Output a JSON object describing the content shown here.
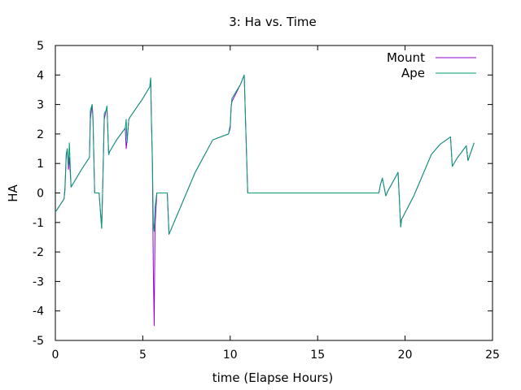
{
  "chart_data": {
    "type": "line",
    "title": "3: Ha vs. Time",
    "xlabel": "time (Elapse Hours)",
    "ylabel": "HA",
    "xlim": [
      0,
      25
    ],
    "ylim": [
      -5,
      5
    ],
    "xticks": [
      0,
      5,
      10,
      15,
      20,
      25
    ],
    "yticks": [
      -5,
      -4,
      -3,
      -2,
      -1,
      0,
      1,
      2,
      3,
      4,
      5
    ],
    "grid": false,
    "legend_position": "top-right",
    "series": [
      {
        "name": "Mount",
        "color": "#9400d3",
        "x": [
          0,
          0.5,
          0.55,
          0.62,
          0.68,
          0.75,
          0.8,
          0.9,
          1.5,
          1.95,
          2.0,
          2.1,
          2.15,
          2.25,
          2.5,
          2.6,
          2.65,
          2.7,
          2.8,
          2.9,
          2.95,
          3.05,
          3.1,
          3.5,
          4.0,
          4.05,
          4.1,
          4.2,
          4.3,
          5.0,
          5.4,
          5.45,
          5.5,
          5.55,
          5.6,
          5.65,
          5.7,
          5.8,
          6.1,
          6.4,
          6.5,
          8.0,
          9.0,
          9.9,
          10.0,
          10.05,
          10.1,
          10.6,
          10.8,
          10.9,
          11.0,
          18.5,
          18.6,
          18.7,
          18.9,
          19.0,
          19.6,
          19.75,
          19.8,
          20.5,
          21.0,
          21.5,
          22.0,
          22.6,
          22.7,
          23.0,
          23.5,
          23.6,
          23.95
        ],
        "y": [
          -0.65,
          -0.2,
          0.1,
          1.2,
          1.5,
          0.8,
          1.2,
          0.2,
          0.8,
          1.2,
          2.5,
          3.0,
          2.5,
          0.0,
          0.0,
          -0.8,
          -1.2,
          0.0,
          2.5,
          2.8,
          2.9,
          1.3,
          1.4,
          1.8,
          2.2,
          1.5,
          1.8,
          2.5,
          2.6,
          3.2,
          3.6,
          3.9,
          2.4,
          1.0,
          -2.5,
          -4.5,
          -1.2,
          0.0,
          0.0,
          0.0,
          -1.4,
          0.7,
          1.8,
          2.0,
          2.2,
          2.9,
          3.1,
          3.7,
          4.0,
          2.0,
          0.0,
          0.0,
          0.3,
          0.5,
          -0.1,
          0.05,
          0.7,
          -1.15,
          -0.9,
          -0.1,
          0.6,
          1.3,
          1.65,
          1.9,
          0.9,
          1.2,
          1.6,
          1.1,
          1.7
        ]
      },
      {
        "name": "Ape",
        "color": "#009e73",
        "x": [
          0,
          0.5,
          0.55,
          0.62,
          0.68,
          0.75,
          0.8,
          0.9,
          1.5,
          1.95,
          2.0,
          2.1,
          2.15,
          2.25,
          2.5,
          2.6,
          2.65,
          2.7,
          2.8,
          2.9,
          2.95,
          3.05,
          3.1,
          3.5,
          4.0,
          4.05,
          4.1,
          4.2,
          4.3,
          5.0,
          5.4,
          5.45,
          5.5,
          5.55,
          5.6,
          5.65,
          5.7,
          5.8,
          6.1,
          6.4,
          6.5,
          8.0,
          9.0,
          9.9,
          10.0,
          10.05,
          10.1,
          10.6,
          10.8,
          10.9,
          11.0,
          18.5,
          18.6,
          18.7,
          18.9,
          19.0,
          19.6,
          19.75,
          19.8,
          20.5,
          21.0,
          21.5,
          22.0,
          22.6,
          22.7,
          23.0,
          23.5,
          23.6,
          23.95
        ],
        "y": [
          -0.65,
          -0.2,
          0.2,
          1.3,
          1.5,
          0.9,
          1.7,
          0.2,
          0.8,
          1.2,
          2.8,
          3.0,
          2.6,
          0.0,
          0.0,
          -0.8,
          -1.2,
          0.0,
          2.7,
          2.8,
          2.95,
          1.3,
          1.4,
          1.8,
          2.2,
          2.5,
          1.7,
          2.5,
          2.6,
          3.2,
          3.6,
          3.9,
          2.3,
          1.2,
          -1.0,
          -1.3,
          -0.5,
          0.0,
          0.0,
          0.0,
          -1.4,
          0.7,
          1.8,
          2.0,
          2.3,
          2.9,
          3.2,
          3.7,
          4.0,
          2.0,
          0.0,
          0.0,
          0.3,
          0.5,
          -0.1,
          0.05,
          0.7,
          -1.15,
          -0.9,
          -0.1,
          0.6,
          1.3,
          1.65,
          1.9,
          0.9,
          1.2,
          1.6,
          1.1,
          1.7
        ]
      }
    ]
  }
}
